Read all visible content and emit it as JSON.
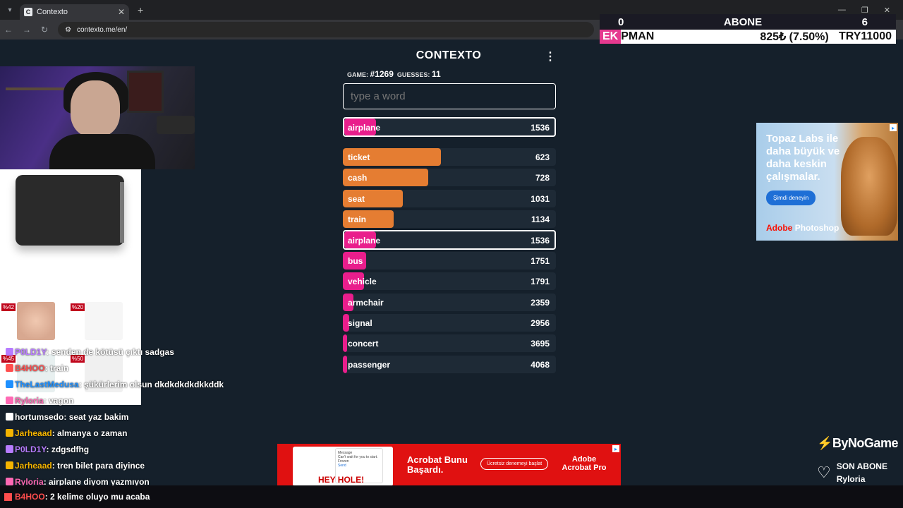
{
  "browser": {
    "tab_title": "Contexto",
    "tab_favicon": "C",
    "url": "contexto.me/en/"
  },
  "overlay": {
    "abone_left": "0",
    "abone_title": "ABONE",
    "abone_right": "6",
    "ticker_prefix": "EK",
    "ticker_name": "PMAN",
    "ticker_mid": "825₺ (7.50%)",
    "ticker_right": "TRY11000",
    "bynogame": "ByNoGame",
    "son_abone_label": "SON ABONE",
    "son_abone_name": "Ryloria"
  },
  "game": {
    "title": "CONTEXTO",
    "game_label": "GAME:",
    "game_number": "#1269",
    "guesses_label": "GUESSES:",
    "guesses": "11",
    "input_placeholder": "type a word",
    "last_guess": {
      "word": "airplane",
      "distance": 1536,
      "color": "#e91e8c",
      "fill": 0.15
    },
    "guesses_list": [
      {
        "word": "ticket",
        "distance": 623,
        "color": "#e57d32",
        "fill": 0.46
      },
      {
        "word": "cash",
        "distance": 728,
        "color": "#e57d32",
        "fill": 0.4
      },
      {
        "word": "seat",
        "distance": 1031,
        "color": "#e57d32",
        "fill": 0.28
      },
      {
        "word": "train",
        "distance": 1134,
        "color": "#e57d32",
        "fill": 0.24
      },
      {
        "word": "airplane",
        "distance": 1536,
        "color": "#e91e8c",
        "fill": 0.15,
        "highlight": true
      },
      {
        "word": "bus",
        "distance": 1751,
        "color": "#e91e8c",
        "fill": 0.11
      },
      {
        "word": "vehicle",
        "distance": 1791,
        "color": "#e91e8c",
        "fill": 0.1
      },
      {
        "word": "armchair",
        "distance": 2359,
        "color": "#e91e8c",
        "fill": 0.05
      },
      {
        "word": "signal",
        "distance": 2956,
        "color": "#e91e8c",
        "fill": 0.03
      },
      {
        "word": "concert",
        "distance": 3695,
        "color": "#e91e8c",
        "fill": 0.01
      },
      {
        "word": "passenger",
        "distance": 4068,
        "color": "#e91e8c",
        "fill": 0.01
      }
    ]
  },
  "product_ad": {
    "badges": [
      "%42",
      "%20",
      "%45",
      "%50"
    ]
  },
  "chat": [
    {
      "user": "P0LD1Y",
      "text": "senden de kötüsü çıktı sadgas",
      "color": "#b77cff"
    },
    {
      "user": "B4HOO",
      "text": "train",
      "color": "#ff4d4d"
    },
    {
      "user": "TheLastMedusa",
      "text": "şükürlerim olsun dkdkdkdkdkkddk",
      "color": "#1e90ff"
    },
    {
      "user": "Ryloria",
      "text": "vagon",
      "color": "#ff69b4"
    },
    {
      "user": "hortumsedo",
      "text": "seat yaz bakim",
      "color": "#ffffff"
    },
    {
      "user": "Jarheaad",
      "text": "almanya o zaman",
      "color": "#f4b400"
    },
    {
      "user": "P0LD1Y",
      "text": "zdgsdfhg",
      "color": "#b77cff"
    },
    {
      "user": "Jarheaad",
      "text": "tren bilet para diyince",
      "color": "#f4b400"
    },
    {
      "user": "Ryloria",
      "text": "airplane diyom yazmıyon",
      "color": "#ff69b4"
    },
    {
      "user": "B4HOO",
      "text": "2 kelime oluyo mu acaba",
      "color": "#ff4d4d"
    }
  ],
  "right_ad": {
    "headline": "Topaz Labs ile daha büyük ve daha keskin çalışmalar.",
    "cta": "Şimdi deneyin",
    "brand_prefix": "Adobe",
    "brand_name": "Photoshop"
  },
  "bottom_ad": {
    "msg_title": "Message",
    "msg_body": "Can't wait for you to start. Frozen",
    "msg_send": "Send",
    "hey": "HEY HOLE!",
    "headline": "Acrobat Bunu Başardı.",
    "cta": "Ücretsiz denemeyi başlat",
    "brand": "Adobe Acrobat Pro"
  }
}
